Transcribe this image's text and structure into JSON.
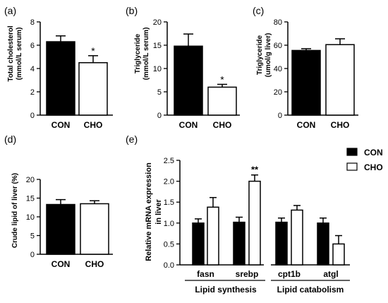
{
  "chart_data": [
    {
      "panel": "(a)",
      "type": "bar",
      "categories": [
        "CON",
        "CHO"
      ],
      "values": [
        6.3,
        4.5
      ],
      "errors": [
        0.5,
        0.6
      ],
      "significance": [
        "",
        "*"
      ],
      "ylabel": [
        "Total cholesterol",
        "(mmol/L serum)"
      ],
      "ylim": [
        0,
        8
      ],
      "yticks": [
        0,
        2,
        4,
        6,
        8
      ],
      "fills": [
        "#000000",
        "#ffffff"
      ]
    },
    {
      "panel": "(b)",
      "type": "bar",
      "categories": [
        "CON",
        "CHO"
      ],
      "values": [
        14.8,
        6.0
      ],
      "errors": [
        2.6,
        0.6
      ],
      "significance": [
        "",
        "*"
      ],
      "ylabel": [
        "Triglyceride",
        "(mmol/L serum)"
      ],
      "ylim": [
        0,
        20
      ],
      "yticks": [
        0,
        5,
        10,
        15,
        20
      ],
      "fills": [
        "#000000",
        "#ffffff"
      ]
    },
    {
      "panel": "(c)",
      "type": "bar",
      "categories": [
        "CON",
        "CHO"
      ],
      "values": [
        55.5,
        60.5
      ],
      "errors": [
        1.5,
        5
      ],
      "significance": [
        "",
        ""
      ],
      "ylabel": [
        "Triglyceride",
        "(umol/g liver)"
      ],
      "ylim": [
        0,
        80
      ],
      "yticks": [
        0,
        20,
        40,
        60,
        80
      ],
      "fills": [
        "#000000",
        "#ffffff"
      ]
    },
    {
      "panel": "(d)",
      "type": "bar",
      "categories": [
        "CON",
        "CHO"
      ],
      "values": [
        13.3,
        13.5
      ],
      "errors": [
        1.3,
        0.8
      ],
      "significance": [
        "",
        ""
      ],
      "ylabel": [
        "Crude lipid of liver (%)"
      ],
      "ylim": [
        0,
        20
      ],
      "yticks": [
        0,
        5,
        10,
        15,
        20
      ],
      "fills": [
        "#000000",
        "#ffffff"
      ]
    },
    {
      "panel": "(e)",
      "type": "bar",
      "categories": [
        "fasn",
        "srebp",
        "cpt1b",
        "atgl"
      ],
      "groups": [
        {
          "label": "Lipid synthesis",
          "categories": [
            "fasn",
            "srebp"
          ]
        },
        {
          "label": "Lipid catabolism",
          "categories": [
            "cpt1b",
            "atgl"
          ]
        }
      ],
      "series": [
        {
          "name": "CON",
          "fill": "#000000",
          "values": [
            1.0,
            1.02,
            1.02,
            1.0
          ],
          "errors": [
            0.1,
            0.12,
            0.1,
            0.12
          ]
        },
        {
          "name": "CHO",
          "fill": "#ffffff",
          "values": [
            1.38,
            2.0,
            1.31,
            0.5
          ],
          "errors": [
            0.23,
            0.15,
            0.11,
            0.2
          ]
        }
      ],
      "significance": {
        "srebp": "**"
      },
      "ylabel": [
        "Relative mRNA expression",
        "in liver"
      ],
      "ylim": [
        0,
        2.5
      ],
      "yticks": [
        "0.0",
        "0.5",
        "1.0",
        "1.5",
        "2.0",
        "2.5"
      ],
      "legend": "top-right"
    }
  ]
}
